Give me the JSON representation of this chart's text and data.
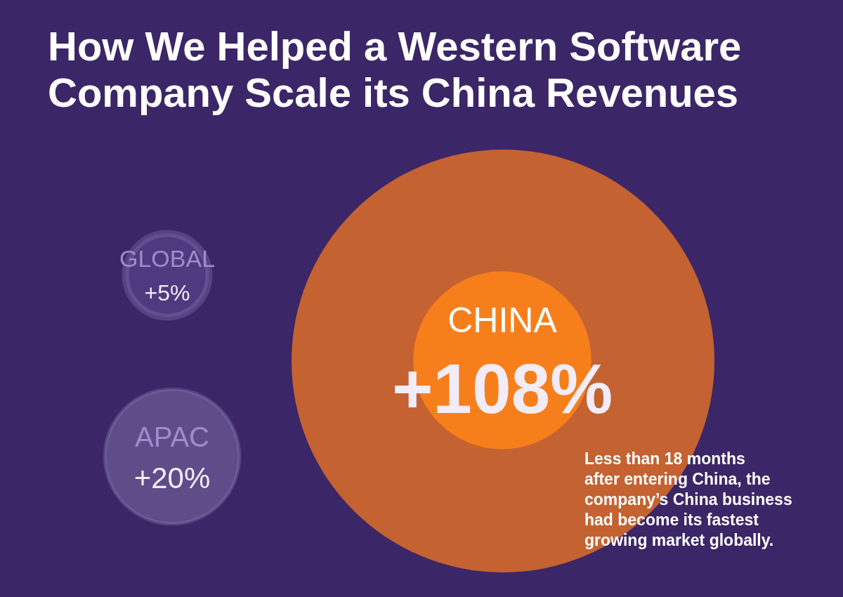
{
  "chart_data": {
    "type": "other",
    "title": "How We Helped a Western Software\nCompany Scale its China Revenues",
    "categories": [
      "GLOBAL",
      "APAC",
      "CHINA"
    ],
    "values": [
      5,
      20,
      108
    ],
    "value_labels": [
      "+5%",
      "+20%",
      "+108%"
    ],
    "colors": [
      "#4e3a7e",
      "#5e4d88",
      "#f77f1b"
    ],
    "annotations": [
      "Less than 18 months\nafter entering China, the\ncompany’s China business\nhad become its fastest\ngrowing market globally."
    ]
  }
}
